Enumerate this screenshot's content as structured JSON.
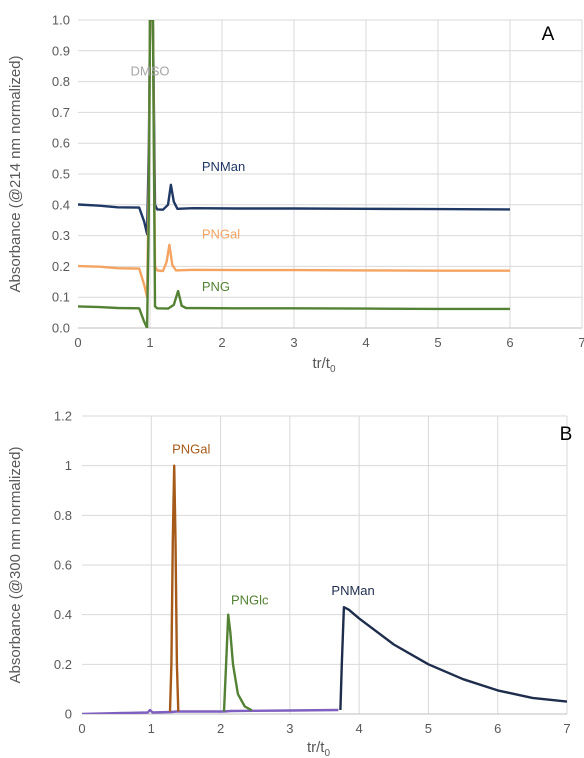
{
  "chart_data": [
    {
      "type": "line",
      "panel_label": "A",
      "xlabel": "tr/t",
      "xlabel_sub": "0",
      "ylabel": "Absorbance (@214 nm normalized)",
      "xlim": [
        0,
        7
      ],
      "ylim": [
        0,
        1.0
      ],
      "grid": true,
      "x_ticks": [
        "0",
        "1",
        "2",
        "3",
        "4",
        "5",
        "6",
        "7"
      ],
      "y_ticks": [
        "0.0",
        "0.1",
        "0.2",
        "0.3",
        "0.4",
        "0.5",
        "0.6",
        "0.7",
        "0.8",
        "0.9",
        "1.0"
      ],
      "annotations": [
        {
          "text": "DMSO",
          "x": 1.0,
          "y": 0.82,
          "color": "#a6a6a6"
        }
      ],
      "series": [
        {
          "name": "PNMan",
          "color": "#203864",
          "label_at": [
            1.72,
            0.51
          ],
          "points": [
            [
              0,
              0.401
            ],
            [
              0.3,
              0.397
            ],
            [
              0.55,
              0.392
            ],
            [
              0.85,
              0.391
            ],
            [
              0.92,
              0.345
            ],
            [
              0.96,
              0.305
            ],
            [
              0.985,
              0.6
            ],
            [
              1.0,
              1.0
            ],
            [
              1.04,
              1.0
            ],
            [
              1.07,
              0.4
            ],
            [
              1.1,
              0.385
            ],
            [
              1.18,
              0.384
            ],
            [
              1.25,
              0.4
            ],
            [
              1.29,
              0.465
            ],
            [
              1.33,
              0.41
            ],
            [
              1.38,
              0.387
            ],
            [
              1.6,
              0.389
            ],
            [
              2.2,
              0.388
            ],
            [
              3.0,
              0.388
            ],
            [
              4.0,
              0.387
            ],
            [
              5.0,
              0.386
            ],
            [
              6.0,
              0.385
            ]
          ]
        },
        {
          "name": "PNGal",
          "color": "#f4a460",
          "label_at": [
            1.72,
            0.29
          ],
          "points": [
            [
              0,
              0.201
            ],
            [
              0.3,
              0.199
            ],
            [
              0.55,
              0.194
            ],
            [
              0.85,
              0.193
            ],
            [
              0.92,
              0.14
            ],
            [
              0.96,
              0.1
            ],
            [
              0.985,
              0.5
            ],
            [
              1.0,
              1.0
            ],
            [
              1.04,
              1.0
            ],
            [
              1.07,
              0.2
            ],
            [
              1.1,
              0.187
            ],
            [
              1.18,
              0.185
            ],
            [
              1.23,
              0.215
            ],
            [
              1.27,
              0.27
            ],
            [
              1.31,
              0.205
            ],
            [
              1.36,
              0.187
            ],
            [
              1.6,
              0.189
            ],
            [
              2.2,
              0.188
            ],
            [
              3.0,
              0.188
            ],
            [
              4.0,
              0.187
            ],
            [
              5.0,
              0.186
            ],
            [
              6.0,
              0.186
            ]
          ]
        },
        {
          "name": "PNG",
          "color": "#548235",
          "label_at": [
            1.72,
            0.12
          ],
          "points": [
            [
              0,
              0.07
            ],
            [
              0.3,
              0.068
            ],
            [
              0.55,
              0.065
            ],
            [
              0.85,
              0.064
            ],
            [
              0.92,
              0.02
            ],
            [
              0.96,
              0.0
            ],
            [
              0.985,
              0.4
            ],
            [
              1.0,
              1.0
            ],
            [
              1.04,
              1.0
            ],
            [
              1.07,
              0.07
            ],
            [
              1.1,
              0.064
            ],
            [
              1.25,
              0.063
            ],
            [
              1.33,
              0.075
            ],
            [
              1.39,
              0.12
            ],
            [
              1.44,
              0.072
            ],
            [
              1.5,
              0.065
            ],
            [
              2.2,
              0.064
            ],
            [
              3.0,
              0.064
            ],
            [
              4.0,
              0.063
            ],
            [
              5.0,
              0.062
            ],
            [
              6.0,
              0.062
            ]
          ]
        }
      ]
    },
    {
      "type": "line",
      "panel_label": "B",
      "xlabel": "tr/t",
      "xlabel_sub": "0",
      "ylabel": "Absorbance (@300 nm normalized)",
      "xlim": [
        0,
        7
      ],
      "ylim": [
        0,
        1.2
      ],
      "grid": true,
      "x_ticks": [
        "0",
        "1",
        "2",
        "3",
        "4",
        "5",
        "6",
        "7"
      ],
      "y_ticks": [
        "0",
        "0.2",
        "0.4",
        "0.6",
        "0.8",
        "1",
        "1.2"
      ],
      "series": [
        {
          "name": "",
          "color": "#7f5fbf",
          "points": [
            [
              0,
              0.0
            ],
            [
              0.6,
              0.004
            ],
            [
              0.95,
              0.006
            ],
            [
              0.98,
              0.016
            ],
            [
              1.02,
              0.006
            ],
            [
              1.28,
              0.008
            ],
            [
              1.37,
              0.01
            ],
            [
              2.05,
              0.01
            ],
            [
              2.15,
              0.012
            ],
            [
              3.0,
              0.014
            ],
            [
              3.7,
              0.016
            ]
          ]
        },
        {
          "name": "PNGal",
          "color": "#a65a1a",
          "label_at": [
            1.3,
            1.05
          ],
          "points": [
            [
              1.27,
              0.01
            ],
            [
              1.29,
              0.2
            ],
            [
              1.31,
              0.7
            ],
            [
              1.33,
              1.0
            ],
            [
              1.35,
              0.7
            ],
            [
              1.37,
              0.2
            ],
            [
              1.39,
              0.01
            ]
          ]
        },
        {
          "name": "PNGlc",
          "color": "#548235",
          "label_at": [
            2.15,
            0.44
          ],
          "points": [
            [
              2.05,
              0.01
            ],
            [
              2.08,
              0.2
            ],
            [
              2.11,
              0.4
            ],
            [
              2.14,
              0.33
            ],
            [
              2.18,
              0.2
            ],
            [
              2.25,
              0.08
            ],
            [
              2.35,
              0.03
            ],
            [
              2.45,
              0.015
            ]
          ]
        },
        {
          "name": "PNMan",
          "color": "#1f2d4d",
          "label_at": [
            3.6,
            0.48
          ],
          "points": [
            [
              3.73,
              0.016
            ],
            [
              3.75,
              0.2
            ],
            [
              3.78,
              0.43
            ],
            [
              3.85,
              0.42
            ],
            [
              4.0,
              0.385
            ],
            [
              4.5,
              0.28
            ],
            [
              5.0,
              0.2
            ],
            [
              5.5,
              0.14
            ],
            [
              6.0,
              0.095
            ],
            [
              6.5,
              0.065
            ],
            [
              7.0,
              0.05
            ]
          ]
        }
      ]
    }
  ]
}
